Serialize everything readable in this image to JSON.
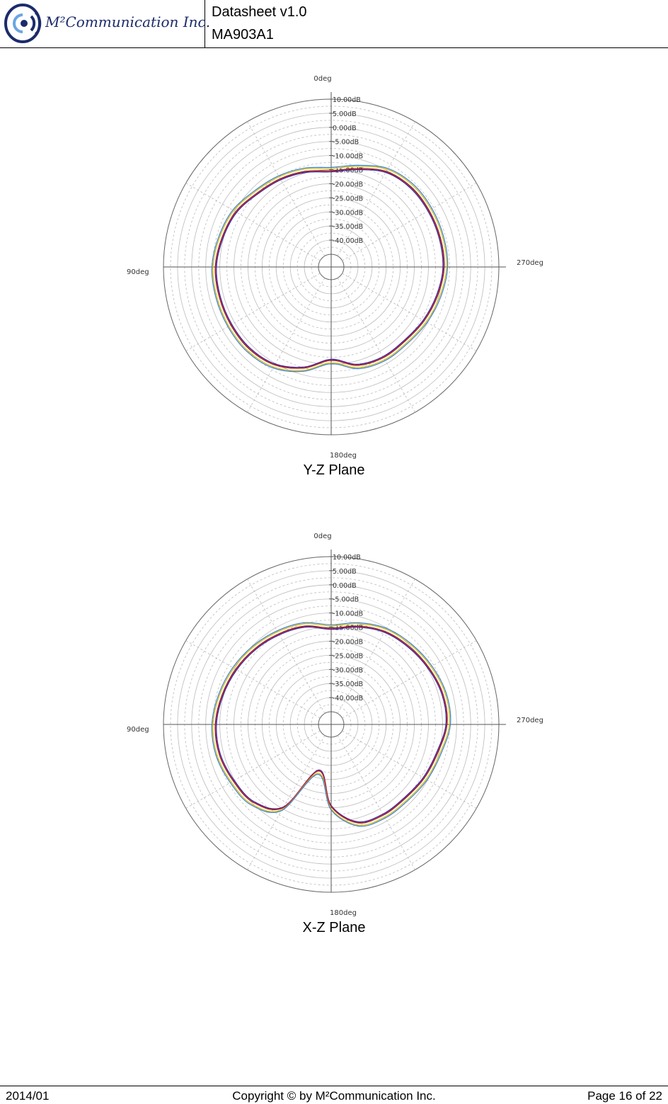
{
  "header": {
    "company_name": "M²Communication Inc.",
    "doc_title": "Datasheet v1.0",
    "part_number": "MA903A1"
  },
  "plots": [
    {
      "caption": "Y-Z Plane",
      "angle_labels": {
        "top": "0deg",
        "left": "90deg",
        "right": "270deg",
        "bottom": "180deg"
      }
    },
    {
      "caption": "X-Z Plane",
      "angle_labels": {
        "top": "0deg",
        "left": "90deg",
        "right": "270deg",
        "bottom": "180deg"
      }
    }
  ],
  "chart_data": [
    {
      "type": "line",
      "subtype": "polar",
      "title": "Y-Z Plane",
      "radial_ticks": [
        "10.00dB",
        "5.00dB",
        "0.00dB",
        "-5.00dB",
        "-10.00dB",
        "-15.00dB",
        "-20.00dB",
        "-25.00dB",
        "-30.00dB",
        "-35.00dB",
        "-40.00dB"
      ],
      "rlim": [
        -45,
        10
      ],
      "angle_ticks": [
        "0deg",
        "90deg",
        "180deg",
        "270deg"
      ],
      "grid": true,
      "series_colors": [
        "#1f1fb0",
        "#000000",
        "#e02020",
        "#d8c000",
        "#3a7dd8"
      ],
      "series": [
        {
          "theta": [
            0,
            15,
            30,
            45,
            60,
            75,
            90,
            105,
            120,
            135,
            150,
            165,
            180,
            195,
            210,
            225,
            240,
            255,
            270,
            285,
            300,
            315,
            330,
            345
          ],
          "r": [
            -15,
            -14,
            -13,
            -12,
            -10,
            -9,
            -8,
            -8,
            -8,
            -8,
            -9,
            -12,
            -16,
            -13,
            -12,
            -12,
            -11,
            -10,
            -9,
            -9,
            -9,
            -9,
            -10,
            -13
          ]
        }
      ]
    },
    {
      "type": "line",
      "subtype": "polar",
      "title": "X-Z Plane",
      "radial_ticks": [
        "10.00dB",
        "5.00dB",
        "0.00dB",
        "-5.00dB",
        "-10.00dB",
        "-15.00dB",
        "-20.00dB",
        "-25.00dB",
        "-30.00dB",
        "-35.00dB",
        "-40.00dB"
      ],
      "rlim": [
        -45,
        10
      ],
      "angle_ticks": [
        "0deg",
        "90deg",
        "180deg",
        "270deg"
      ],
      "grid": true,
      "series_colors": [
        "#1f1fb0",
        "#000000",
        "#e02020",
        "#d8c000",
        "#3a7dd8"
      ],
      "series": [
        {
          "theta": [
            0,
            15,
            30,
            45,
            60,
            75,
            90,
            105,
            120,
            135,
            150,
            165,
            180,
            195,
            210,
            225,
            240,
            255,
            270,
            285,
            300,
            315,
            330,
            345
          ],
          "r": [
            -15,
            -13,
            -12,
            -11,
            -10,
            -9,
            -8,
            -8,
            -9,
            -10,
            -15,
            -32,
            -20,
            -13,
            -12,
            -12,
            -11,
            -10,
            -8,
            -8,
            -9,
            -10,
            -11,
            -13
          ]
        }
      ]
    }
  ],
  "footer": {
    "date": "2014/01",
    "copyright": "Copyright © by M²Communication Inc.",
    "page": "Page 16 of 22"
  }
}
